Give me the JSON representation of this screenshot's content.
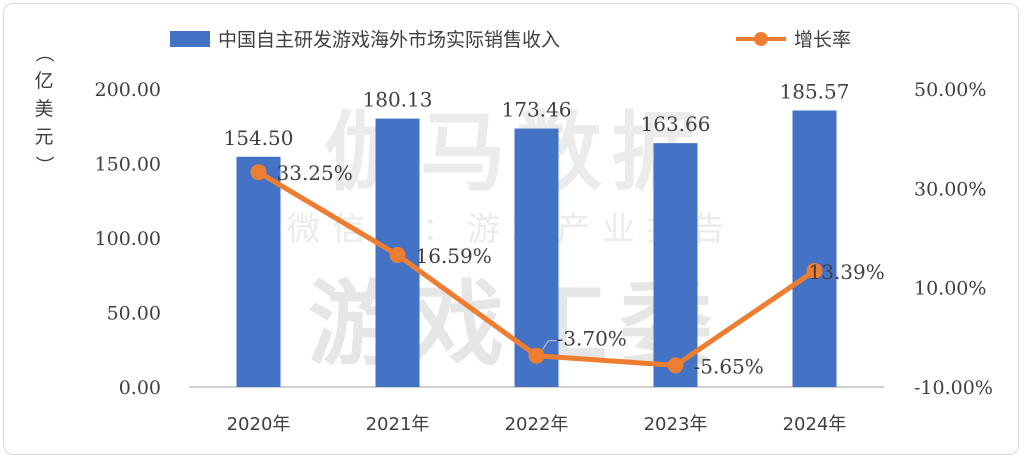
{
  "chart_data": {
    "type": "bar",
    "categories": [
      "2020年",
      "2021年",
      "2022年",
      "2023年",
      "2024年"
    ],
    "series": [
      {
        "name": "中国自主研发游戏海外市场实际销售收入",
        "type": "bar",
        "axis": "left",
        "color": "#4472C4",
        "values": [
          154.5,
          180.13,
          173.46,
          163.66,
          185.57
        ],
        "labels": [
          "154.50",
          "180.13",
          "173.46",
          "163.66",
          "185.57"
        ]
      },
      {
        "name": "增长率",
        "type": "line",
        "axis": "right",
        "color": "#ED7D31",
        "values": [
          33.25,
          16.59,
          -3.7,
          -5.65,
          13.39
        ],
        "labels": [
          "33.25%",
          "16.59%",
          "-3.70%",
          "-5.65%",
          "13.39%"
        ]
      }
    ],
    "ylabel": "（亿美元）",
    "ylabel_chars": [
      "（",
      "亿",
      "美",
      "元",
      "）"
    ],
    "y_left": {
      "ylim": [
        0,
        200
      ],
      "ticks": [
        "0.00",
        "50.00",
        "100.00",
        "150.00",
        "200.00"
      ]
    },
    "y_right": {
      "ylim": [
        -10,
        50
      ],
      "ticks": [
        "-10.00%",
        "10.00%",
        "30.00%",
        "50.00%"
      ]
    },
    "legend_position": "top",
    "grid": false
  },
  "watermark": {
    "line1": "伽马数据",
    "line2": "微信号：游戏产业报告",
    "line3": "游戏工委"
  }
}
